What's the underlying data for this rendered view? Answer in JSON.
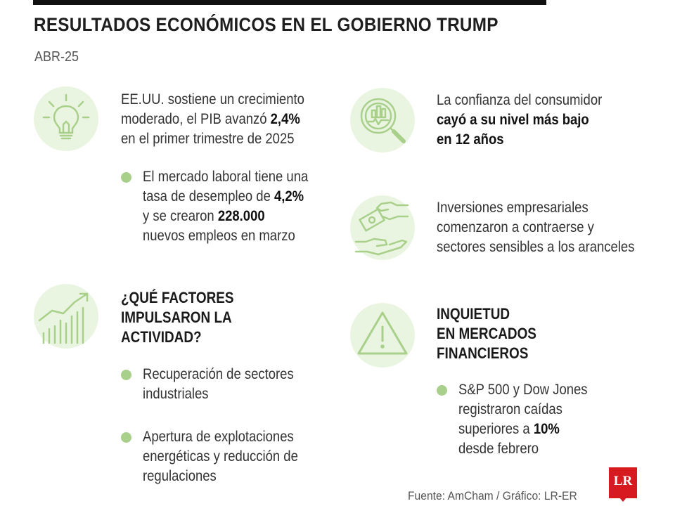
{
  "header": {
    "title": "RESULTADOS ECONÓMICOS EN EL GOBIERNO TRUMP",
    "date": "ABR-25"
  },
  "left": {
    "gdp": {
      "line1": "EE.UU. sostiene un crecimiento",
      "line2_pre": "moderado, el PIB avanzó ",
      "line2_bold": "2,4%",
      "line3": "en el primer trimestre de 2025",
      "icon": "lightbulb-icon"
    },
    "labor": {
      "line1": "El mercado laboral tiene una",
      "line2_pre": "tasa de desempleo de ",
      "line2_bold": "4,2%",
      "line3_pre": "y se crearon ",
      "line3_bold": "228.000",
      "line4": "nuevos empleos en marzo"
    },
    "factors": {
      "heading_lines": [
        "¿QUÉ FACTORES",
        "IMPULSARON LA",
        "ACTIVIDAD?"
      ],
      "icon": "growth-chart-icon",
      "items": [
        {
          "lines": [
            "Recuperación de sectores",
            "industriales"
          ]
        },
        {
          "lines": [
            "Apertura de explotaciones",
            "energéticas y reducción de",
            "regulaciones"
          ]
        }
      ]
    }
  },
  "right": {
    "consumer": {
      "line1": "La confianza del consumidor",
      "line2_bold": "cayó a su nivel más bajo",
      "line3_bold": "en 12 años",
      "icon": "magnifier-chart-icon"
    },
    "investment": {
      "lines": [
        "Inversiones empresariales",
        "comenzaron a contraerse y",
        "sectores sensibles a los aranceles"
      ],
      "icon": "money-hands-icon"
    },
    "markets": {
      "heading_lines": [
        "INQUIETUD",
        "EN MERCADOS",
        "FINANCIEROS"
      ],
      "icon": "warning-icon",
      "line1": "S&P 500 y Dow Jones",
      "line2": "registraron caídas",
      "line3_pre": "superiores a ",
      "line3_bold": "10%",
      "line4": "desde febrero"
    }
  },
  "footer": {
    "source": "Fuente: AmCham / Gráfico: LR-ER",
    "logo": "LR"
  },
  "colors": {
    "accent_green": "#a9d08a",
    "circle_bg": "#eaf5e1",
    "logo_red": "#d71920"
  }
}
